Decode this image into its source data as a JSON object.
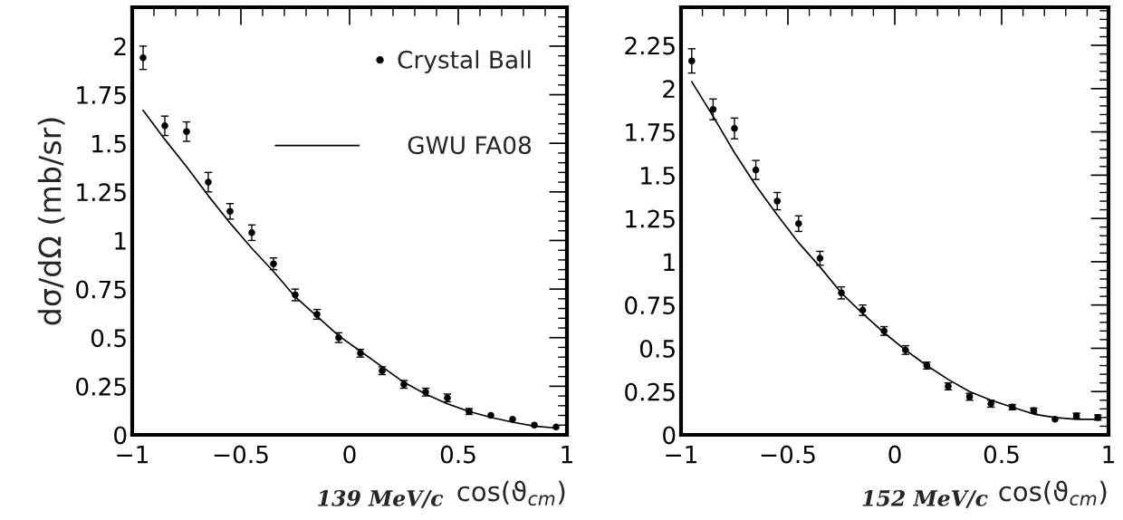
{
  "chart_data": [
    {
      "type": "scatter",
      "ylabel": "dσ/dΩ (mb/sr)",
      "xlabel": "cos(ϑ$_{cm}$)",
      "annotations": [
        "139 MeV/c"
      ],
      "xlim": [
        -1,
        1
      ],
      "xticks": [
        -1,
        -0.5,
        0,
        0.5,
        1
      ],
      "ylim": [
        0,
        2.2
      ],
      "yticks": [
        0,
        0.25,
        0.5,
        0.75,
        1,
        1.25,
        1.5,
        1.75,
        2
      ],
      "legend": "top right",
      "grid": false,
      "series": [
        {
          "name": "Crystal Ball",
          "marker": "circle",
          "color": "#000000",
          "x": [
            -0.95,
            -0.85,
            -0.75,
            -0.65,
            -0.55,
            -0.45,
            -0.35,
            -0.25,
            -0.15,
            -0.05,
            0.05,
            0.15,
            0.25,
            0.35,
            0.45,
            0.55,
            0.65,
            0.75,
            0.85,
            0.95
          ],
          "values": [
            1.94,
            1.59,
            1.56,
            1.3,
            1.15,
            1.04,
            0.88,
            0.72,
            0.62,
            0.5,
            0.42,
            0.33,
            0.26,
            0.22,
            0.19,
            0.12,
            0.1,
            0.08,
            0.05,
            0.04
          ],
          "errors": [
            0.06,
            0.05,
            0.05,
            0.05,
            0.04,
            0.04,
            0.03,
            0.03,
            0.025,
            0.025,
            0.02,
            0.02,
            0.02,
            0.02,
            0.02,
            0.015,
            null,
            null,
            null,
            null
          ]
        },
        {
          "name": "GWU FA08",
          "type": "line",
          "marker": "none",
          "line_style": "solid",
          "color": "#000000",
          "x": [
            -0.95,
            -0.85,
            -0.75,
            -0.65,
            -0.55,
            -0.45,
            -0.35,
            -0.25,
            -0.15,
            -0.05,
            0.05,
            0.15,
            0.25,
            0.35,
            0.45,
            0.55,
            0.65,
            0.75,
            0.85,
            0.95
          ],
          "values": [
            1.67,
            1.52,
            1.38,
            1.23,
            1.09,
            0.96,
            0.84,
            0.71,
            0.61,
            0.51,
            0.43,
            0.35,
            0.27,
            0.21,
            0.16,
            0.12,
            0.09,
            0.065,
            0.045,
            0.035
          ]
        }
      ]
    },
    {
      "type": "scatter",
      "xlabel": "cos(ϑ$_{cm}$)",
      "annotations": [
        "152 MeV/c"
      ],
      "xlim": [
        -1,
        1
      ],
      "xticks": [
        -1,
        -0.5,
        0,
        0.5,
        1
      ],
      "ylim": [
        0,
        2.47
      ],
      "yticks": [
        0,
        0.25,
        0.5,
        0.75,
        1,
        1.25,
        1.5,
        1.75,
        2,
        2.25
      ],
      "grid": false,
      "series": [
        {
          "marker": "circle",
          "color": "#000000",
          "x": [
            -0.95,
            -0.85,
            -0.75,
            -0.65,
            -0.55,
            -0.45,
            -0.35,
            -0.25,
            -0.15,
            -0.05,
            0.05,
            0.15,
            0.25,
            0.35,
            0.45,
            0.55,
            0.65,
            0.75,
            0.85,
            0.95
          ],
          "values": [
            2.16,
            1.88,
            1.77,
            1.53,
            1.35,
            1.22,
            1.02,
            0.82,
            0.72,
            0.6,
            0.49,
            0.4,
            0.28,
            0.22,
            0.18,
            0.16,
            0.14,
            0.09,
            0.11,
            0.1
          ],
          "errors": [
            0.07,
            0.06,
            0.06,
            0.055,
            0.05,
            0.045,
            0.04,
            0.035,
            0.03,
            0.025,
            0.025,
            0.02,
            0.02,
            0.02,
            0.02,
            0.015,
            0.015,
            null,
            0.015,
            0.015
          ]
        },
        {
          "type": "line",
          "marker": "none",
          "line_style": "solid",
          "color": "#000000",
          "x": [
            -0.95,
            -0.85,
            -0.75,
            -0.65,
            -0.55,
            -0.45,
            -0.35,
            -0.25,
            -0.15,
            -0.05,
            0.05,
            0.15,
            0.25,
            0.35,
            0.45,
            0.55,
            0.65,
            0.75,
            0.85,
            0.95
          ],
          "values": [
            2.04,
            1.84,
            1.63,
            1.44,
            1.27,
            1.11,
            0.97,
            0.82,
            0.7,
            0.59,
            0.49,
            0.4,
            0.32,
            0.25,
            0.2,
            0.16,
            0.12,
            0.1,
            0.09,
            0.09
          ]
        }
      ]
    }
  ]
}
